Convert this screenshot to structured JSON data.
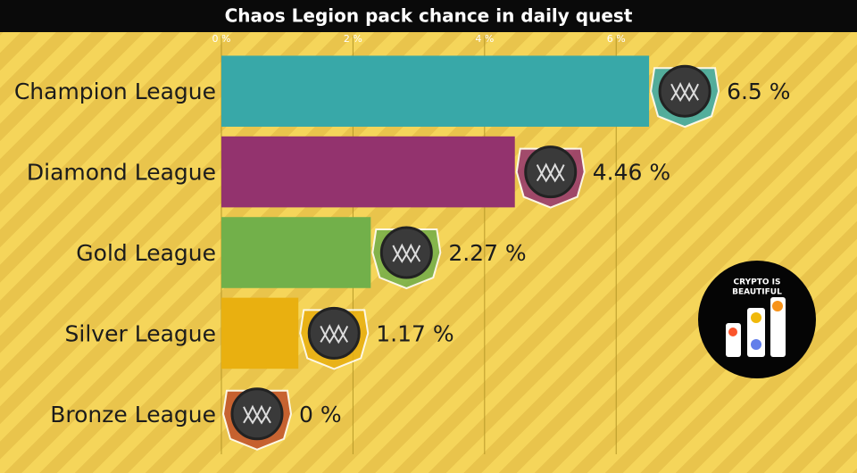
{
  "chart_data": {
    "type": "barh",
    "title": "Chaos Legion pack chance in daily quest",
    "categories": [
      "Champion League",
      "Diamond League",
      "Gold League",
      "Silver League",
      "Bronze League"
    ],
    "values": [
      6.5,
      4.46,
      2.27,
      1.17,
      0
    ],
    "value_labels": [
      "6.5 %",
      "4.46 %",
      "2.27 %",
      "1.17 %",
      "0 %"
    ],
    "colors": [
      "#38a8a8",
      "#93336e",
      "#72b04a",
      "#e9b010",
      "#c0502a"
    ],
    "xlim": [
      0,
      9.66
    ],
    "xticks": [
      {
        "value": 0,
        "label": "0 %"
      },
      {
        "value": 2,
        "label": "2 %"
      },
      {
        "value": 4,
        "label": "4 %"
      },
      {
        "value": 6,
        "label": "6 %"
      }
    ],
    "grid": true
  },
  "logo_text": [
    "CRYPTO IS",
    "BEAUTIFUL"
  ]
}
